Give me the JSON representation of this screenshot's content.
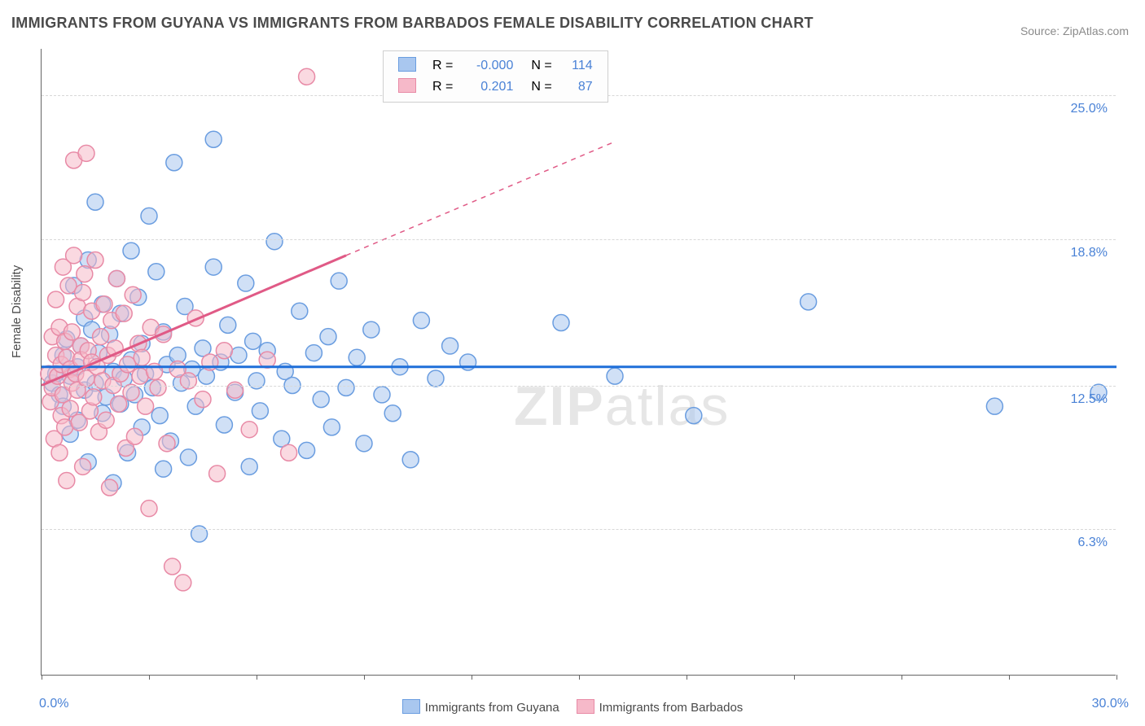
{
  "title": "IMMIGRANTS FROM GUYANA VS IMMIGRANTS FROM BARBADOS FEMALE DISABILITY CORRELATION CHART",
  "source": "Source: ZipAtlas.com",
  "y_axis_title": "Female Disability",
  "watermark": {
    "bold": "ZIP",
    "light": "atlas"
  },
  "chart": {
    "type": "scatter",
    "background_color": "#ffffff",
    "grid_color": "#d8d8d8",
    "axis_color": "#666666",
    "xlim": [
      0,
      30
    ],
    "ylim": [
      0,
      27
    ],
    "x_label_min": "0.0%",
    "x_label_max": "30.0%",
    "x_ticks": [
      0,
      3,
      6,
      9,
      12,
      15,
      18,
      21,
      24,
      27,
      30
    ],
    "y_gridlines": [
      {
        "value": 6.3,
        "label": "6.3%"
      },
      {
        "value": 12.5,
        "label": "12.5%"
      },
      {
        "value": 18.8,
        "label": "18.8%"
      },
      {
        "value": 25.0,
        "label": "25.0%"
      }
    ],
    "marker_radius": 10,
    "marker_stroke_width": 1.5,
    "series": [
      {
        "name": "Immigrants from Guyana",
        "fill": "#a9c7ef",
        "stroke": "#6a9de0",
        "R": "-0.000",
        "N": "114",
        "trend": {
          "x1": 0,
          "y1": 13.3,
          "x2": 30,
          "y2": 13.3,
          "dash": false,
          "color": "#1f6fd9",
          "width": 3
        },
        "points": [
          [
            0.3,
            12.6
          ],
          [
            0.4,
            13.0
          ],
          [
            0.5,
            12.1
          ],
          [
            0.6,
            13.8
          ],
          [
            0.6,
            11.6
          ],
          [
            0.7,
            14.5
          ],
          [
            0.8,
            12.9
          ],
          [
            0.8,
            10.4
          ],
          [
            0.9,
            16.8
          ],
          [
            1.0,
            13.3
          ],
          [
            1.0,
            11.0
          ],
          [
            1.1,
            14.2
          ],
          [
            1.2,
            15.4
          ],
          [
            1.2,
            12.3
          ],
          [
            1.3,
            17.9
          ],
          [
            1.3,
            9.2
          ],
          [
            1.4,
            14.9
          ],
          [
            1.5,
            12.6
          ],
          [
            1.5,
            20.4
          ],
          [
            1.6,
            13.9
          ],
          [
            1.7,
            11.3
          ],
          [
            1.7,
            16.0
          ],
          [
            1.8,
            12.0
          ],
          [
            1.9,
            14.7
          ],
          [
            2.0,
            13.1
          ],
          [
            2.0,
            8.3
          ],
          [
            2.1,
            17.1
          ],
          [
            2.2,
            11.7
          ],
          [
            2.2,
            15.6
          ],
          [
            2.3,
            12.8
          ],
          [
            2.4,
            9.6
          ],
          [
            2.5,
            13.6
          ],
          [
            2.5,
            18.3
          ],
          [
            2.6,
            12.1
          ],
          [
            2.7,
            16.3
          ],
          [
            2.8,
            10.7
          ],
          [
            2.8,
            14.3
          ],
          [
            2.9,
            13.0
          ],
          [
            3.0,
            19.8
          ],
          [
            3.1,
            12.4
          ],
          [
            3.2,
            17.4
          ],
          [
            3.3,
            11.2
          ],
          [
            3.4,
            14.8
          ],
          [
            3.4,
            8.9
          ],
          [
            3.5,
            13.4
          ],
          [
            3.6,
            10.1
          ],
          [
            3.7,
            22.1
          ],
          [
            3.8,
            13.8
          ],
          [
            3.9,
            12.6
          ],
          [
            4.0,
            15.9
          ],
          [
            4.1,
            9.4
          ],
          [
            4.2,
            13.2
          ],
          [
            4.3,
            11.6
          ],
          [
            4.4,
            6.1
          ],
          [
            4.5,
            14.1
          ],
          [
            4.6,
            12.9
          ],
          [
            4.8,
            17.6
          ],
          [
            4.8,
            23.1
          ],
          [
            5.0,
            13.5
          ],
          [
            5.1,
            10.8
          ],
          [
            5.2,
            15.1
          ],
          [
            5.4,
            12.2
          ],
          [
            5.5,
            13.8
          ],
          [
            5.7,
            16.9
          ],
          [
            5.8,
            9.0
          ],
          [
            5.9,
            14.4
          ],
          [
            6.0,
            12.7
          ],
          [
            6.1,
            11.4
          ],
          [
            6.3,
            14.0
          ],
          [
            6.5,
            18.7
          ],
          [
            6.7,
            10.2
          ],
          [
            6.8,
            13.1
          ],
          [
            7.0,
            12.5
          ],
          [
            7.2,
            15.7
          ],
          [
            7.4,
            9.7
          ],
          [
            7.6,
            13.9
          ],
          [
            7.8,
            11.9
          ],
          [
            8.0,
            14.6
          ],
          [
            8.1,
            10.7
          ],
          [
            8.3,
            17.0
          ],
          [
            8.5,
            12.4
          ],
          [
            8.8,
            13.7
          ],
          [
            9.0,
            10.0
          ],
          [
            9.2,
            14.9
          ],
          [
            9.5,
            12.1
          ],
          [
            9.8,
            11.3
          ],
          [
            10.0,
            13.3
          ],
          [
            10.3,
            9.3
          ],
          [
            10.6,
            15.3
          ],
          [
            11.0,
            12.8
          ],
          [
            11.4,
            14.2
          ],
          [
            11.9,
            13.5
          ],
          [
            14.5,
            15.2
          ],
          [
            16.0,
            12.9
          ],
          [
            18.2,
            11.2
          ],
          [
            21.4,
            16.1
          ],
          [
            26.6,
            11.6
          ],
          [
            29.5,
            12.2
          ]
        ]
      },
      {
        "name": "Immigrants from Barbados",
        "fill": "#f6b9c9",
        "stroke": "#e88aa6",
        "R": "0.201",
        "N": "87",
        "trend": {
          "x1": 0,
          "y1": 12.5,
          "x2": 8.5,
          "y2": 18.1,
          "dash_after": 8.5,
          "dash_x2": 16.0,
          "dash_y2": 23.0,
          "color": "#e05a86",
          "width": 3
        },
        "points": [
          [
            0.2,
            13.0
          ],
          [
            0.25,
            11.8
          ],
          [
            0.3,
            14.6
          ],
          [
            0.3,
            12.4
          ],
          [
            0.35,
            10.2
          ],
          [
            0.4,
            13.8
          ],
          [
            0.4,
            16.2
          ],
          [
            0.45,
            12.9
          ],
          [
            0.5,
            9.6
          ],
          [
            0.5,
            15.0
          ],
          [
            0.55,
            13.4
          ],
          [
            0.55,
            11.2
          ],
          [
            0.6,
            17.6
          ],
          [
            0.6,
            12.1
          ],
          [
            0.65,
            14.4
          ],
          [
            0.65,
            10.7
          ],
          [
            0.7,
            13.7
          ],
          [
            0.7,
            8.4
          ],
          [
            0.75,
            16.8
          ],
          [
            0.8,
            13.2
          ],
          [
            0.8,
            11.5
          ],
          [
            0.85,
            14.8
          ],
          [
            0.85,
            12.6
          ],
          [
            0.9,
            22.2
          ],
          [
            0.9,
            18.1
          ],
          [
            0.95,
            13.0
          ],
          [
            1.0,
            15.9
          ],
          [
            1.0,
            12.3
          ],
          [
            1.05,
            10.9
          ],
          [
            1.1,
            14.2
          ],
          [
            1.1,
            13.6
          ],
          [
            1.15,
            16.5
          ],
          [
            1.15,
            9.0
          ],
          [
            1.2,
            17.3
          ],
          [
            1.25,
            12.8
          ],
          [
            1.25,
            22.5
          ],
          [
            1.3,
            14.0
          ],
          [
            1.35,
            11.4
          ],
          [
            1.4,
            13.5
          ],
          [
            1.4,
            15.7
          ],
          [
            1.45,
            12.0
          ],
          [
            1.5,
            17.9
          ],
          [
            1.55,
            13.3
          ],
          [
            1.6,
            10.5
          ],
          [
            1.65,
            14.6
          ],
          [
            1.7,
            12.7
          ],
          [
            1.75,
            16.0
          ],
          [
            1.8,
            11.0
          ],
          [
            1.85,
            13.8
          ],
          [
            1.9,
            8.1
          ],
          [
            1.95,
            15.3
          ],
          [
            2.0,
            12.5
          ],
          [
            2.05,
            14.1
          ],
          [
            2.1,
            17.1
          ],
          [
            2.15,
            11.7
          ],
          [
            2.2,
            13.0
          ],
          [
            2.3,
            15.6
          ],
          [
            2.35,
            9.8
          ],
          [
            2.4,
            13.4
          ],
          [
            2.5,
            12.2
          ],
          [
            2.55,
            16.4
          ],
          [
            2.6,
            10.3
          ],
          [
            2.7,
            14.3
          ],
          [
            2.75,
            12.9
          ],
          [
            2.8,
            13.7
          ],
          [
            2.9,
            11.6
          ],
          [
            3.0,
            7.2
          ],
          [
            3.05,
            15.0
          ],
          [
            3.15,
            13.1
          ],
          [
            3.25,
            12.4
          ],
          [
            3.4,
            14.7
          ],
          [
            3.5,
            10.0
          ],
          [
            3.65,
            4.7
          ],
          [
            3.8,
            13.2
          ],
          [
            3.95,
            4.0
          ],
          [
            4.1,
            12.7
          ],
          [
            4.3,
            15.4
          ],
          [
            4.5,
            11.9
          ],
          [
            4.7,
            13.5
          ],
          [
            4.9,
            8.7
          ],
          [
            5.1,
            14.0
          ],
          [
            5.4,
            12.3
          ],
          [
            5.8,
            10.6
          ],
          [
            6.3,
            13.6
          ],
          [
            6.9,
            9.6
          ],
          [
            7.4,
            25.8
          ]
        ]
      }
    ]
  },
  "legend_box": {
    "header_left": "R =",
    "header_right": "N ="
  },
  "bottom_legend": {
    "sep": "          "
  }
}
